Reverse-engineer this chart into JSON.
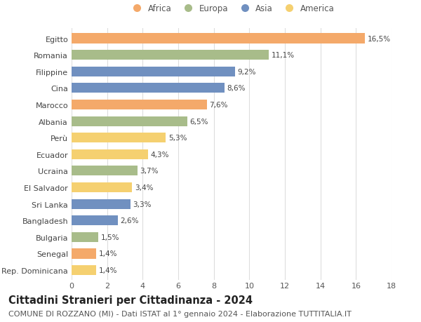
{
  "countries": [
    "Egitto",
    "Romania",
    "Filippine",
    "Cina",
    "Marocco",
    "Albania",
    "Perù",
    "Ecuador",
    "Ucraina",
    "El Salvador",
    "Sri Lanka",
    "Bangladesh",
    "Bulgaria",
    "Senegal",
    "Rep. Dominicana"
  ],
  "values": [
    16.5,
    11.1,
    9.2,
    8.6,
    7.6,
    6.5,
    5.3,
    4.3,
    3.7,
    3.4,
    3.3,
    2.6,
    1.5,
    1.4,
    1.4
  ],
  "labels": [
    "16,5%",
    "11,1%",
    "9,2%",
    "8,6%",
    "7,6%",
    "6,5%",
    "5,3%",
    "4,3%",
    "3,7%",
    "3,4%",
    "3,3%",
    "2,6%",
    "1,5%",
    "1,4%",
    "1,4%"
  ],
  "continents": [
    "Africa",
    "Europa",
    "Asia",
    "Asia",
    "Africa",
    "Europa",
    "America",
    "America",
    "Europa",
    "America",
    "Asia",
    "Asia",
    "Europa",
    "Africa",
    "America"
  ],
  "continent_colors": {
    "Africa": "#F4A96A",
    "Europa": "#A8BC8A",
    "Asia": "#7090C0",
    "America": "#F5D070"
  },
  "legend_order": [
    "Africa",
    "Europa",
    "Asia",
    "America"
  ],
  "xlim": [
    0,
    18
  ],
  "xticks": [
    0,
    2,
    4,
    6,
    8,
    10,
    12,
    14,
    16,
    18
  ],
  "title": "Cittadini Stranieri per Cittadinanza - 2024",
  "subtitle": "COMUNE DI ROZZANO (MI) - Dati ISTAT al 1° gennaio 2024 - Elaborazione TUTTITALIA.IT",
  "background_color": "#ffffff",
  "bar_height": 0.6,
  "title_fontsize": 10.5,
  "subtitle_fontsize": 8.0,
  "label_fontsize": 7.5,
  "tick_fontsize": 8.0,
  "legend_fontsize": 8.5
}
